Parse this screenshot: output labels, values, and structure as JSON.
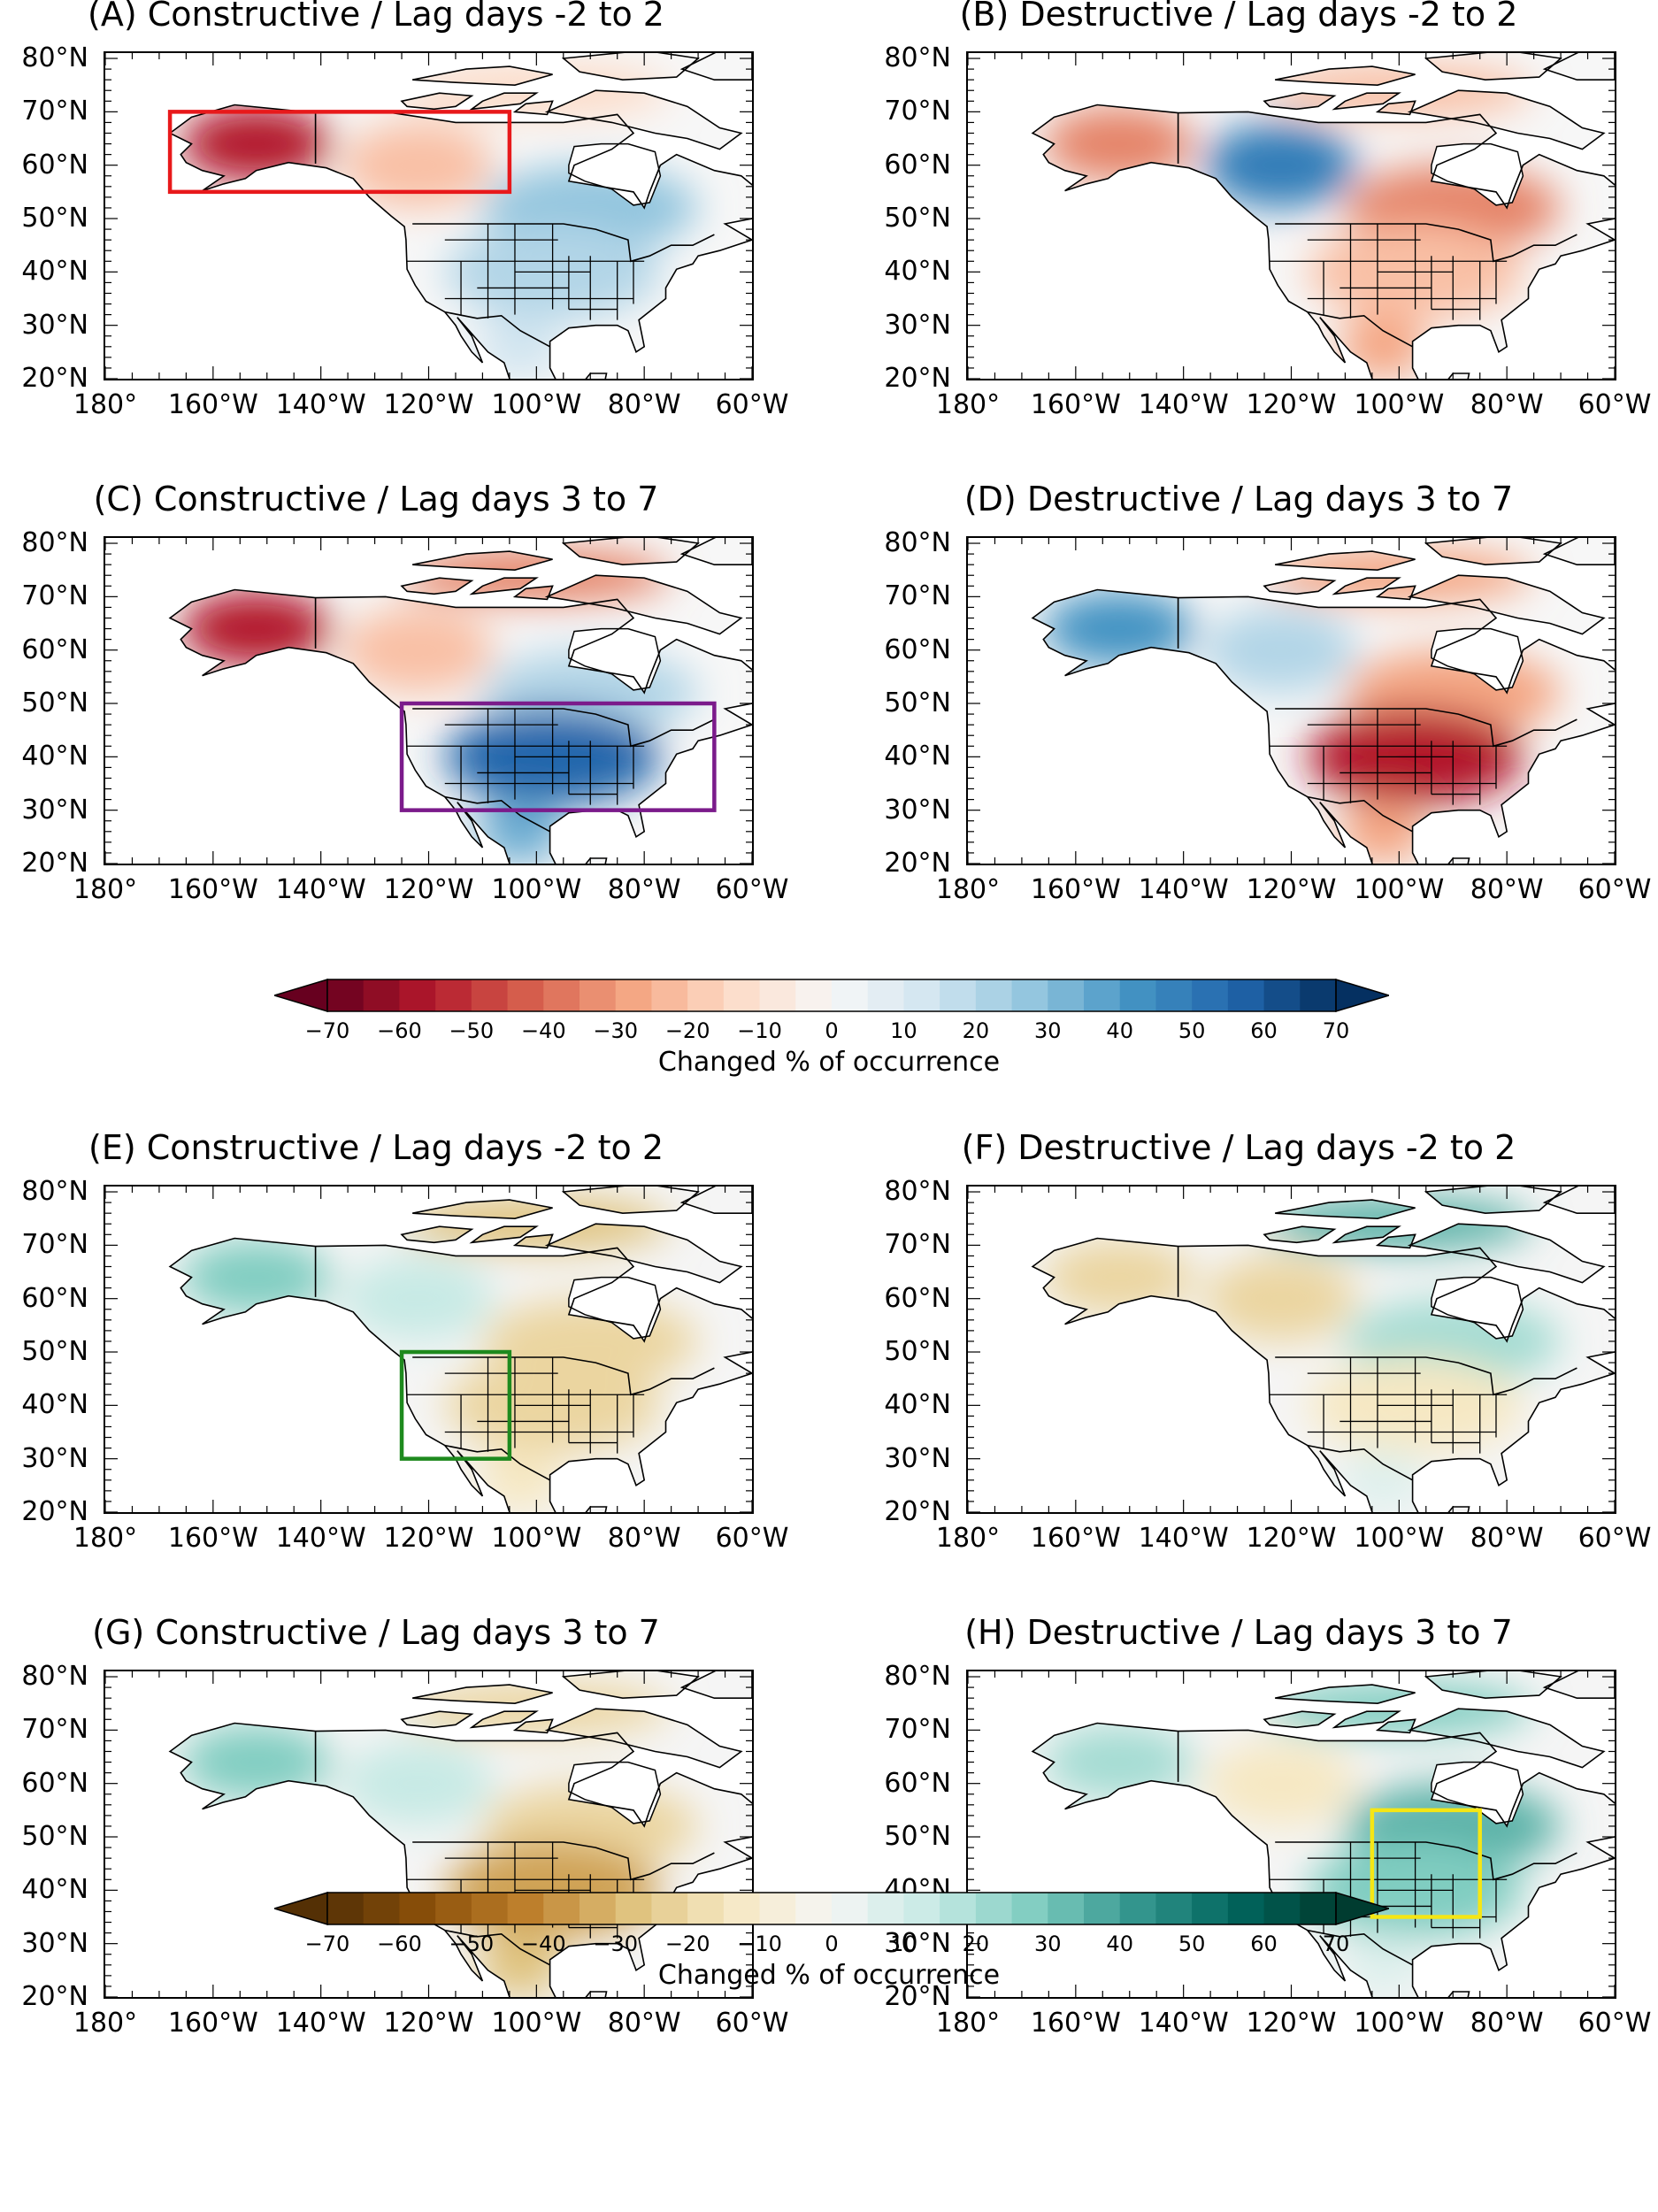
{
  "panels": [
    {
      "id": "A",
      "title": "(A) Constructive / Lag days -2 to 2",
      "scheme": "rb",
      "pattern": [
        [
          "alaska",
          -0.8
        ],
        [
          "westcanada",
          -0.3
        ],
        [
          "eastcanada",
          0.4
        ],
        [
          "us",
          0.3
        ],
        [
          "mexico",
          0.2
        ],
        [
          "arctic",
          -0.2
        ]
      ],
      "box": {
        "color": "#e8191b",
        "lon": [
          -168,
          -105
        ],
        "lat": [
          55,
          70
        ]
      }
    },
    {
      "id": "B",
      "title": "(B) Destructive / Lag days -2 to 2",
      "scheme": "rb",
      "pattern": [
        [
          "alaska",
          -0.5
        ],
        [
          "westcanada",
          0.7
        ],
        [
          "eastcanada",
          -0.5
        ],
        [
          "us",
          -0.3
        ],
        [
          "mexico",
          -0.4
        ],
        [
          "arctic",
          -0.3
        ]
      ]
    },
    {
      "id": "C",
      "title": "(C) Constructive / Lag days 3 to 7",
      "scheme": "rb",
      "pattern": [
        [
          "alaska",
          -0.8
        ],
        [
          "westcanada",
          -0.3
        ],
        [
          "eastcanada",
          0.3
        ],
        [
          "us",
          0.8
        ],
        [
          "mexico",
          0.5
        ],
        [
          "arctic",
          -0.5
        ]
      ],
      "box": {
        "color": "#7b1b8b",
        "lon": [
          -125,
          -67
        ],
        "lat": [
          30,
          50
        ]
      }
    },
    {
      "id": "D",
      "title": "(D) Destructive / Lag days 3 to 7",
      "scheme": "rb",
      "pattern": [
        [
          "alaska",
          0.6
        ],
        [
          "westcanada",
          0.3
        ],
        [
          "eastcanada",
          -0.4
        ],
        [
          "us",
          -0.8
        ],
        [
          "mexico",
          -0.4
        ],
        [
          "arctic",
          -0.4
        ]
      ]
    },
    {
      "id": "E",
      "title": "(E) Constructive / Lag days -2 to 2",
      "scheme": "bg",
      "pattern": [
        [
          "alaska",
          0.4
        ],
        [
          "westcanada",
          0.2
        ],
        [
          "eastcanada",
          -0.3
        ],
        [
          "us",
          -0.3
        ],
        [
          "mexico",
          -0.2
        ],
        [
          "arctic",
          -0.4
        ]
      ],
      "box": {
        "color": "#1e8a1e",
        "lon": [
          -125,
          -105
        ],
        "lat": [
          30,
          50
        ]
      }
    },
    {
      "id": "F",
      "title": "(F) Destructive / Lag days -2 to 2",
      "scheme": "bg",
      "pattern": [
        [
          "alaska",
          -0.3
        ],
        [
          "westcanada",
          -0.3
        ],
        [
          "eastcanada",
          0.3
        ],
        [
          "us",
          -0.2
        ],
        [
          "mexico",
          0.1
        ],
        [
          "arctic",
          0.5
        ]
      ]
    },
    {
      "id": "G",
      "title": "(G) Constructive / Lag days 3 to 7",
      "scheme": "bg",
      "pattern": [
        [
          "alaska",
          0.4
        ],
        [
          "westcanada",
          0.2
        ],
        [
          "eastcanada",
          -0.3
        ],
        [
          "us",
          -0.5
        ],
        [
          "mexico",
          -0.4
        ],
        [
          "arctic",
          -0.3
        ]
      ]
    },
    {
      "id": "H",
      "title": "(H) Destructive / Lag days 3 to 7",
      "scheme": "bg",
      "pattern": [
        [
          "alaska",
          0.3
        ],
        [
          "westcanada",
          -0.2
        ],
        [
          "eastcanada",
          0.5
        ],
        [
          "us",
          0.4
        ],
        [
          "mexico",
          0.1
        ],
        [
          "arctic",
          0.4
        ]
      ],
      "box": {
        "color": "#f5e614",
        "lon": [
          -105,
          -85
        ],
        "lat": [
          35,
          55
        ]
      }
    }
  ],
  "map_axes": {
    "lat_labels": [
      "80°N",
      "70°N",
      "60°N",
      "50°N",
      "40°N",
      "30°N",
      "20°N"
    ],
    "lat_values": [
      80,
      70,
      60,
      50,
      40,
      30,
      20
    ],
    "lon_labels": [
      "180°",
      "160°W",
      "140°W",
      "120°W",
      "100°W",
      "80°W",
      "60°W"
    ],
    "lon_values": [
      -180,
      -160,
      -140,
      -120,
      -100,
      -80,
      -60
    ],
    "lon_range": [
      -180,
      -60
    ],
    "lat_range": [
      20,
      81
    ]
  },
  "colorbars": [
    {
      "id": "rb",
      "ticks": [
        "−70",
        "−60",
        "−50",
        "−40",
        "−30",
        "−20",
        "−10",
        "0",
        "10",
        "20",
        "30",
        "40",
        "50",
        "60",
        "70"
      ],
      "label": "Changed % of occurrence",
      "neg": "#67001f",
      "mid": "#f7f7f7",
      "pos": "#053061",
      "stops": [
        "#67001f",
        "#b2182b",
        "#d6604d",
        "#f4a582",
        "#fddbc7",
        "#f7f7f7",
        "#d1e5f0",
        "#92c5de",
        "#4393c3",
        "#2166ac",
        "#053061"
      ]
    },
    {
      "id": "bg",
      "ticks": [
        "−70",
        "−60",
        "−50",
        "−40",
        "−30",
        "−20",
        "−10",
        "0",
        "10",
        "20",
        "30",
        "40",
        "50",
        "60",
        "70"
      ],
      "label": "Changed % of occurrence",
      "neg": "#543005",
      "mid": "#f5f5f5",
      "pos": "#003c30",
      "stops": [
        "#543005",
        "#8c510a",
        "#bf812d",
        "#dfc27d",
        "#f6e8c3",
        "#f5f5f5",
        "#c7eae5",
        "#80cdc1",
        "#35978f",
        "#01665e",
        "#003c30"
      ]
    }
  ]
}
